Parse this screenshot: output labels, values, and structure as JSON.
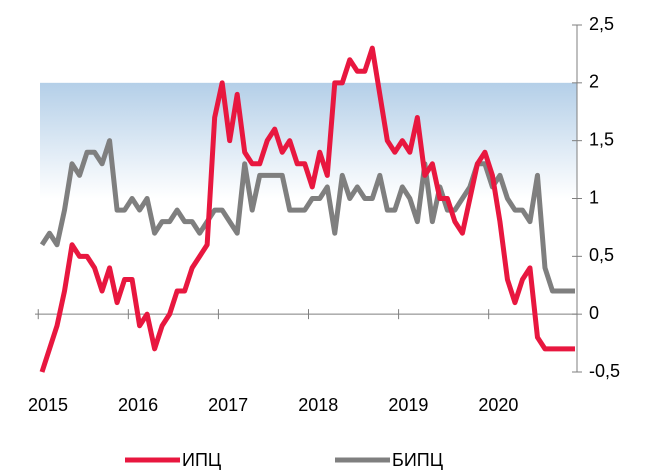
{
  "chart_data": {
    "type": "line",
    "categories": [
      "2015",
      null,
      null,
      null,
      null,
      null,
      null,
      null,
      null,
      null,
      null,
      null,
      "2016",
      null,
      null,
      null,
      null,
      null,
      null,
      null,
      null,
      null,
      null,
      null,
      "2017",
      null,
      null,
      null,
      null,
      null,
      null,
      null,
      null,
      null,
      null,
      null,
      "2018",
      null,
      null,
      null,
      null,
      null,
      null,
      null,
      null,
      null,
      null,
      null,
      "2019",
      null,
      null,
      null,
      null,
      null,
      null,
      null,
      null,
      null,
      null,
      null,
      "2020",
      null,
      null,
      null,
      null,
      null,
      null,
      null,
      null,
      null,
      null,
      null
    ],
    "series": [
      {
        "name": "ИПЦ",
        "color": "#e8173f",
        "values": [
          -0.5,
          -0.3,
          -0.1,
          0.2,
          0.6,
          0.5,
          0.5,
          0.4,
          0.2,
          0.4,
          0.1,
          0.3,
          0.3,
          -0.1,
          0,
          -0.3,
          -0.1,
          0,
          0.2,
          0.2,
          0.4,
          0.5,
          0.6,
          1.7,
          2.0,
          1.5,
          1.9,
          1.4,
          1.3,
          1.3,
          1.5,
          1.6,
          1.4,
          1.5,
          1.3,
          1.3,
          1.1,
          1.4,
          1.2,
          2.0,
          2.0,
          2.2,
          2.1,
          2.1,
          2.3,
          1.9,
          1.5,
          1.4,
          1.5,
          1.4,
          1.7,
          1.2,
          1.3,
          1.0,
          1.0,
          0.8,
          0.7,
          1.0,
          1.3,
          1.4,
          1.2,
          0.8,
          0.3,
          0.1,
          0.3,
          0.4,
          -0.2,
          -0.3,
          -0.3,
          -0.3,
          -0.3,
          -0.3
        ]
      },
      {
        "name": "БИПЦ",
        "color": "#7f7f7f",
        "values": [
          0.6,
          0.7,
          0.6,
          0.9,
          1.3,
          1.2,
          1.4,
          1.4,
          1.3,
          1.5,
          0.9,
          0.9,
          1.0,
          0.9,
          1.0,
          0.7,
          0.8,
          0.8,
          0.9,
          0.8,
          0.8,
          0.7,
          0.8,
          0.9,
          0.9,
          0.8,
          0.7,
          1.3,
          0.9,
          1.2,
          1.2,
          1.2,
          1.2,
          0.9,
          0.9,
          0.9,
          1.0,
          1.0,
          1.1,
          0.7,
          1.2,
          1.0,
          1.1,
          1.0,
          1.0,
          1.2,
          0.9,
          0.9,
          1.1,
          1.0,
          0.8,
          1.3,
          0.8,
          1.1,
          0.9,
          0.9,
          1.0,
          1.1,
          1.3,
          1.3,
          1.1,
          1.2,
          1.0,
          0.9,
          0.9,
          0.8,
          1.2,
          0.4,
          0.2,
          0.2,
          0.2,
          0.2
        ]
      }
    ],
    "ylim": [
      -0.5,
      2.5
    ],
    "yticks": [
      {
        "value": 2.5,
        "label": "2,5"
      },
      2,
      {
        "value": 1.5,
        "label": "1,5"
      },
      1,
      {
        "value": 0.5,
        "label": "0,5"
      },
      0,
      {
        "value": -0.5,
        "label": "-0,5"
      }
    ],
    "shaded_range": [
      1,
      2
    ],
    "grid": false,
    "legend": "bottom"
  }
}
